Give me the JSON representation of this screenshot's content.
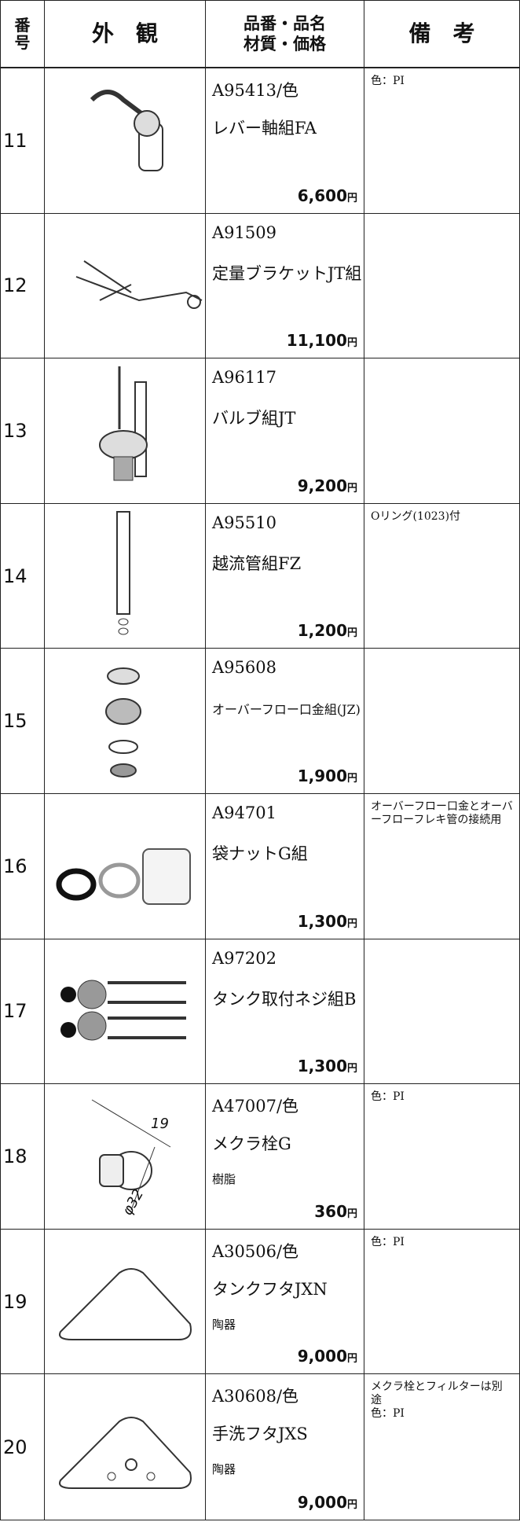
{
  "header": [
    "番号",
    "外　観",
    "品番・品名\n材質・価格",
    "備　考"
  ],
  "rows": [
    {
      "number": "11",
      "code": "A95413/色",
      "name": "レバー軸組FA",
      "price": "6,600",
      "currency": "円",
      "note": "色：PI"
    },
    {
      "number": "12",
      "code": "A91509",
      "name": "定量ブラケットJT組",
      "price": "11,100",
      "currency": "円"
    },
    {
      "number": "13",
      "code": "A96117",
      "name": "バルブ組JT",
      "price": "9,200",
      "currency": "円"
    },
    {
      "number": "14",
      "code": "A95510",
      "name": "越流管組FZ",
      "price": "1,200",
      "currency": "円",
      "note": "Oリング(1023)付"
    },
    {
      "number": "15",
      "code": "A95608",
      "name": "オーバーフロー口金組(JZ)",
      "price": "1,900",
      "currency": "円"
    },
    {
      "number": "16",
      "code": "A94701",
      "name": "袋ナットG組",
      "price": "1,300",
      "currency": "円",
      "note": "オーバーフロー口金とオーバーフローフレキ管の接続用"
    },
    {
      "number": "17",
      "code": "A97202",
      "name": "タンク取付ネジ組B",
      "price": "1,300",
      "currency": "円"
    },
    {
      "number": "18",
      "code": "A47007/色",
      "name": "メクラ栓G",
      "material": "樹脂",
      "price": "360",
      "currency": "円",
      "note": "色：PI",
      "dimensions": [
        "19",
        "φ32"
      ]
    },
    {
      "number": "19",
      "code": "A30506/色",
      "name": "タンクフタJXN",
      "material": "陶器",
      "price": "9,000",
      "currency": "円",
      "note": "色：PI"
    },
    {
      "number": "20",
      "code": "A30608/色",
      "name": "手洗フタJXS",
      "material": "陶器",
      "price": "9,000",
      "currency": "円",
      "note": "メクラ栓とフィルターは別途\n色：PI"
    }
  ]
}
